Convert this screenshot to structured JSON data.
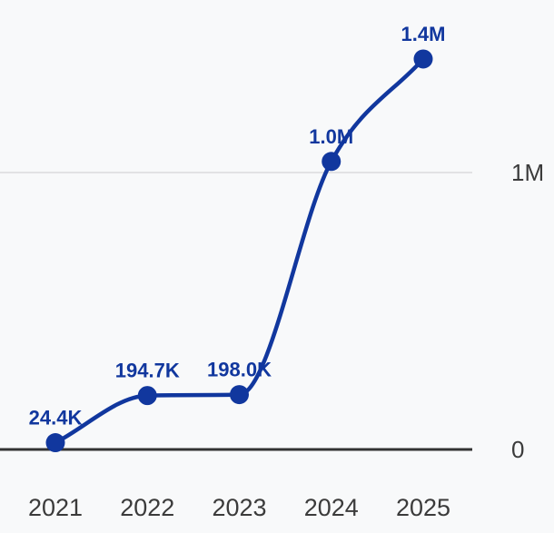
{
  "chart_data": {
    "type": "line",
    "title": "",
    "xlabel": "",
    "ylabel": "",
    "categories": [
      "2021",
      "2022",
      "2023",
      "2024",
      "2025"
    ],
    "series": [
      {
        "name": "value",
        "values": [
          24400,
          194700,
          198000,
          1040000,
          1410000
        ],
        "point_labels": [
          "24.4K",
          "194.7K",
          "198.0K",
          "1.0M",
          "1.4M"
        ],
        "color": "#11379e"
      }
    ],
    "yticks": [
      {
        "value": 0,
        "label": "0"
      },
      {
        "value": 1000000,
        "label": "1M"
      }
    ],
    "ylim": [
      0,
      1450000
    ],
    "grid": "single horizontal gridline at 1M",
    "legend": "none",
    "colors": {
      "background": "#f8f9fa",
      "series": "#11379e",
      "data_label": "#11379e",
      "axis_line": "#333333",
      "grid_line": "#e2e2e4",
      "tick_label": "#3b3b3b"
    }
  }
}
